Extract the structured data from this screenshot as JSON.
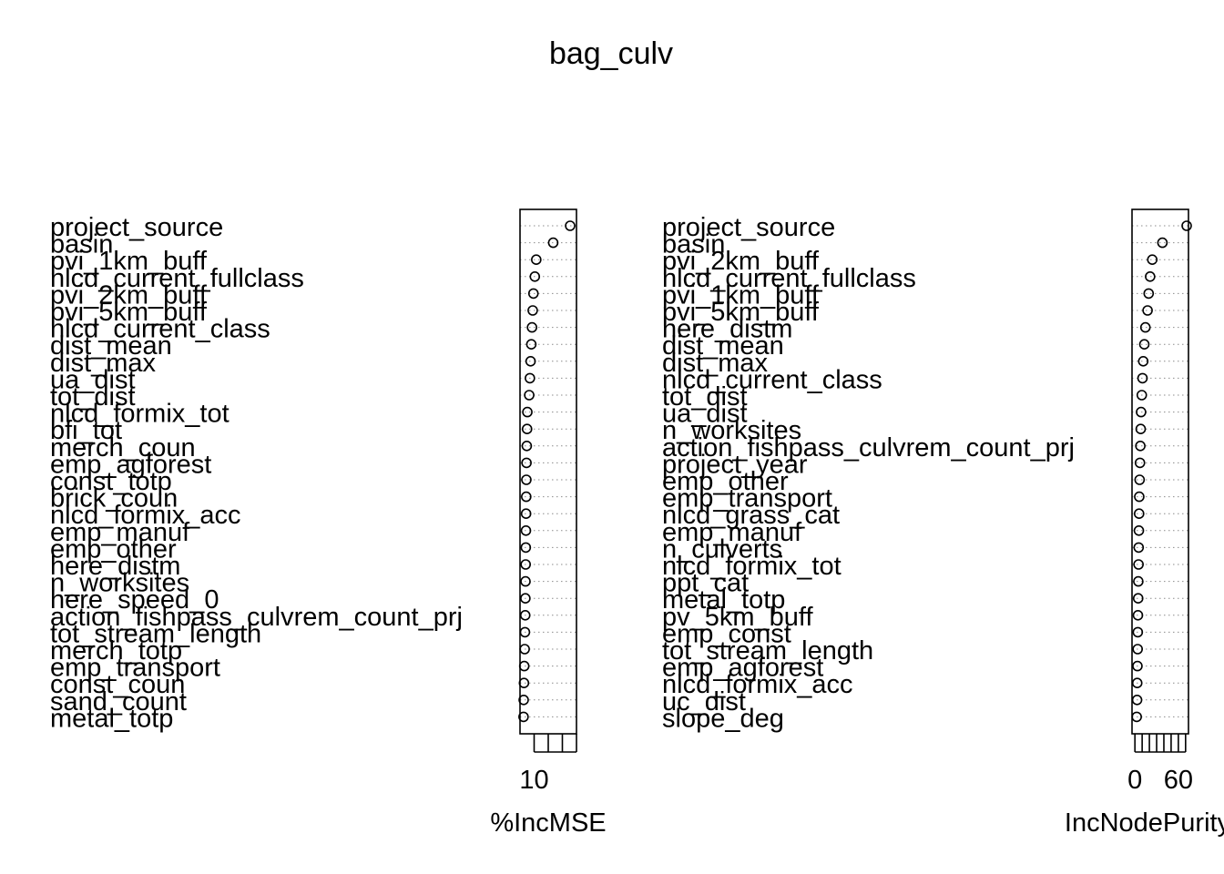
{
  "title": "bag_culv",
  "chart_data": [
    {
      "type": "dotchart",
      "xlabel": "%IncMSE",
      "xlim": [
        9,
        13
      ],
      "xticks": [
        10,
        11,
        12,
        13
      ],
      "xtick_labels": [
        "10",
        "",
        "",
        ""
      ],
      "grid": "dotted",
      "variables": [
        "project_source",
        "basin",
        "pvi_1km_buff",
        "nlcd_current_fullclass",
        "pvi_2km_buff",
        "pvi_5km_buff",
        "nlcd_current_class",
        "dist_mean",
        "dist_max",
        "ua_dist",
        "tot_dist",
        "nlcd_formix_tot",
        "bfi_tot",
        "merch_coun",
        "emp_agforest",
        "const_totp",
        "brick_coun",
        "nlcd_formix_acc",
        "emp_manuf",
        "emp_other",
        "here_distm",
        "n_worksites",
        "here_speed_0",
        "action_fishpass_culvrem_count_prj",
        "tot_stream_length",
        "merch_totp",
        "emp_transport",
        "const_coun",
        "sand_count",
        "metal_totp"
      ],
      "values": [
        12.55,
        11.35,
        10.15,
        10.05,
        9.95,
        9.9,
        9.85,
        9.8,
        9.75,
        9.7,
        9.65,
        9.52,
        9.5,
        9.48,
        9.46,
        9.45,
        9.44,
        9.43,
        9.42,
        9.41,
        9.4,
        9.39,
        9.38,
        9.37,
        9.35,
        9.33,
        9.3,
        9.28,
        9.26,
        9.25
      ]
    },
    {
      "type": "dotchart",
      "xlabel": "IncNodePurity",
      "xlim": [
        -4,
        74
      ],
      "xticks": [
        0,
        10,
        20,
        30,
        40,
        50,
        60,
        70
      ],
      "xtick_labels": [
        "0",
        "",
        "",
        "",
        "",
        "",
        "60",
        ""
      ],
      "grid": "dotted",
      "variables": [
        "project_source",
        "basin",
        "pvi_2km_buff",
        "nlcd_current_fullclass",
        "pvi_1km_buff",
        "pvi_5km_buff",
        "here_distm",
        "dist_mean",
        "dist_max",
        "nlcd_current_class",
        "tot_dist",
        "ua_dist",
        "n_worksites",
        "action_fishpass_culvrem_count_prj",
        "project_year",
        "emp_other",
        "emp_transport",
        "nlcd_grass_cat",
        "emp_manuf",
        "n_culverts",
        "nlcd_formix_tot",
        "ppt_cat",
        "metal_totp",
        "pv_5km_buff",
        "emp_const",
        "tot_stream_length",
        "emp_agforest",
        "nlcd_formix_acc",
        "uc_dist",
        "slope_deg"
      ],
      "values": [
        71.5,
        38,
        24,
        21,
        19,
        17.5,
        14.5,
        13,
        11.5,
        10.5,
        9.5,
        8.5,
        8,
        7.5,
        7,
        6.5,
        6,
        5.8,
        5.5,
        5.2,
        5,
        4.7,
        4.5,
        4.2,
        4,
        3.8,
        3.5,
        3.2,
        3,
        2.5
      ]
    }
  ]
}
